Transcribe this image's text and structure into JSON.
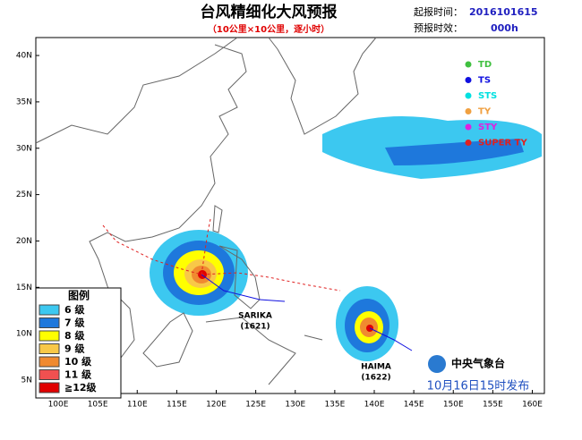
{
  "title": "台风精细化大风预报",
  "subtitle": "（10公里×10公里，逐小时）",
  "info": [
    {
      "label": "起报时间：",
      "value": "2016101615"
    },
    {
      "label": "预报时效：",
      "value": "000h"
    }
  ],
  "map": {
    "lon_ticks": [
      {
        "value": 100,
        "label": "100E"
      },
      {
        "value": 105,
        "label": "105E"
      },
      {
        "value": 110,
        "label": "110E"
      },
      {
        "value": 115,
        "label": "115E"
      },
      {
        "value": 120,
        "label": "120E"
      },
      {
        "value": 125,
        "label": "125E"
      },
      {
        "value": 130,
        "label": "130E"
      },
      {
        "value": 135,
        "label": "135E"
      },
      {
        "value": 140,
        "label": "140E"
      },
      {
        "value": 145,
        "label": "145E"
      },
      {
        "value": 150,
        "label": "150E"
      },
      {
        "value": 155,
        "label": "155E"
      },
      {
        "value": 160,
        "label": "160E"
      }
    ],
    "lat_ticks": [
      {
        "value": 5,
        "label": "5N"
      },
      {
        "value": 10,
        "label": "10N"
      },
      {
        "value": 15,
        "label": "15N"
      },
      {
        "value": 20,
        "label": "20N"
      },
      {
        "value": 25,
        "label": "25N"
      },
      {
        "value": 30,
        "label": "30N"
      },
      {
        "value": 35,
        "label": "35N"
      },
      {
        "value": 40,
        "label": "40N"
      }
    ]
  },
  "legend": {
    "title": "图例",
    "items": [
      {
        "label": "6  级",
        "color": "#3cc8f0"
      },
      {
        "label": "7  级",
        "color": "#1e78dc"
      },
      {
        "label": "8  级",
        "color": "#ffff00"
      },
      {
        "label": "9  级",
        "color": "#f8c848"
      },
      {
        "label": "10 级",
        "color": "#f08a30"
      },
      {
        "label": "11 级",
        "color": "#f05050"
      },
      {
        "label": "≧12级",
        "color": "#e00000"
      }
    ]
  },
  "categories": [
    {
      "label": "TD",
      "color": "#40c040"
    },
    {
      "label": "TS",
      "color": "#1010e0"
    },
    {
      "label": "STS",
      "color": "#00e0e0"
    },
    {
      "label": "TY",
      "color": "#f0a040"
    },
    {
      "label": "STY",
      "color": "#e020e0"
    },
    {
      "label": "SUPER TY",
      "color": "#e02020"
    }
  ],
  "storms": [
    {
      "name": "SARIKA",
      "code": "(1621)"
    },
    {
      "name": "HAIMA",
      "code": "(1622)"
    }
  ],
  "agency": "中央气象台",
  "issued": "10月16日15时发布"
}
